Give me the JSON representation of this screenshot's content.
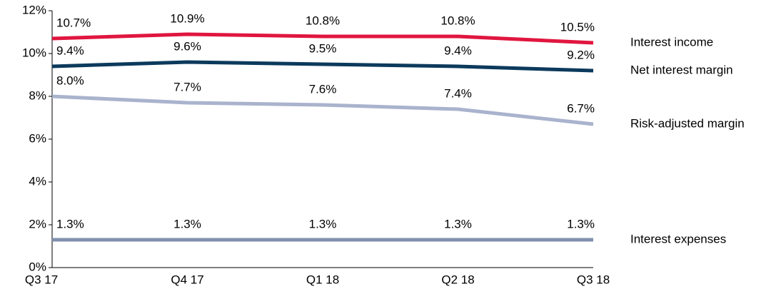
{
  "chart_data": {
    "type": "line",
    "categories": [
      "Q3 17",
      "Q4 17",
      "Q1 18",
      "Q2 18",
      "Q3 18"
    ],
    "series": [
      {
        "name": "Interest income",
        "color": "#e0163f",
        "values": [
          10.7,
          10.9,
          10.8,
          10.8,
          10.5
        ],
        "value_labels": [
          "10.7%",
          "10.9%",
          "10.8%",
          "10.8%",
          "10.5%"
        ]
      },
      {
        "name": "Net interest margin",
        "color": "#0c3a5c",
        "values": [
          9.4,
          9.6,
          9.5,
          9.4,
          9.2
        ],
        "value_labels": [
          "9.4%",
          "9.6%",
          "9.5%",
          "9.4%",
          "9.2%"
        ]
      },
      {
        "name": "Risk-adjusted margin",
        "color": "#a9b3cd",
        "values": [
          8.0,
          7.7,
          7.6,
          7.4,
          6.7
        ],
        "value_labels": [
          "8.0%",
          "7.7%",
          "7.6%",
          "7.4%",
          "6.7%"
        ]
      },
      {
        "name": "Interest expenses",
        "color": "#8190ad",
        "values": [
          1.3,
          1.3,
          1.3,
          1.3,
          1.3
        ],
        "value_labels": [
          "1.3%",
          "1.3%",
          "1.3%",
          "1.3%",
          "1.3%"
        ]
      }
    ],
    "ylim": [
      0,
      12
    ],
    "yticks": [
      {
        "value": 0,
        "label": "0%"
      },
      {
        "value": 2,
        "label": "2%"
      },
      {
        "value": 4,
        "label": "4%"
      },
      {
        "value": 6,
        "label": "6%"
      },
      {
        "value": 8,
        "label": "8%"
      },
      {
        "value": 10,
        "label": "10%"
      },
      {
        "value": 12,
        "label": "12%"
      }
    ],
    "grid": false
  }
}
